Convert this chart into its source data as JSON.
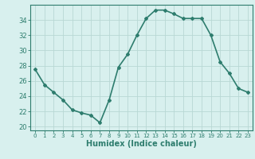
{
  "x": [
    0,
    1,
    2,
    3,
    4,
    5,
    6,
    7,
    8,
    9,
    10,
    11,
    12,
    13,
    14,
    15,
    16,
    17,
    18,
    19,
    20,
    21,
    22,
    23
  ],
  "y": [
    27.5,
    25.5,
    24.5,
    23.5,
    22.2,
    21.8,
    21.5,
    20.5,
    23.5,
    27.8,
    29.5,
    32.0,
    34.2,
    35.3,
    35.3,
    34.8,
    34.2,
    34.2,
    34.2,
    32.0,
    28.5,
    27.0,
    25.0,
    24.5
  ],
  "line_color": "#2e7d6e",
  "marker": "D",
  "markersize": 2.0,
  "linewidth": 1.2,
  "xlabel": "Humidex (Indice chaleur)",
  "xlabel_fontsize": 7,
  "bg_color": "#d8f0ee",
  "grid_color": "#b8d8d4",
  "tick_color": "#2e7d6e",
  "spine_color": "#2e7d6e",
  "ylim": [
    19.5,
    36.0
  ],
  "yticks": [
    20,
    22,
    24,
    26,
    28,
    30,
    32,
    34
  ],
  "xlim": [
    -0.5,
    23.5
  ],
  "xticks": [
    0,
    1,
    2,
    3,
    4,
    5,
    6,
    7,
    8,
    9,
    10,
    11,
    12,
    13,
    14,
    15,
    16,
    17,
    18,
    19,
    20,
    21,
    22,
    23
  ],
  "ytick_fontsize": 6,
  "xtick_fontsize": 5
}
